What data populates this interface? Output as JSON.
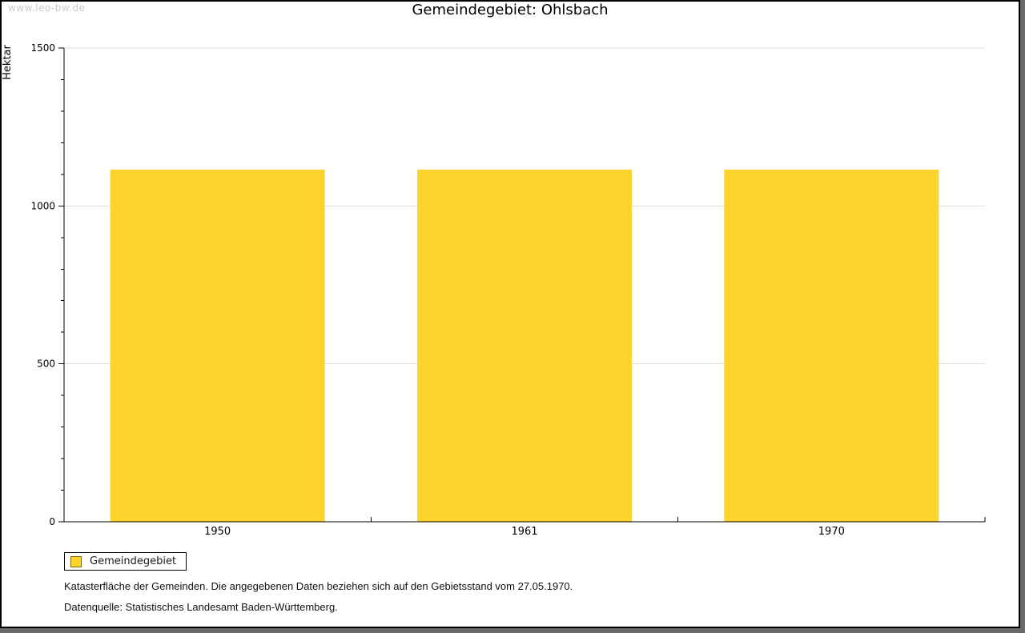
{
  "watermark": "www.leo-bw.de",
  "title": "Gemeindegebiet: Ohlsbach",
  "chart_data": {
    "type": "bar",
    "title": "Gemeindegebiet: Ohlsbach",
    "categories": [
      "1950",
      "1961",
      "1970"
    ],
    "series": [
      {
        "name": "Gemeindegebiet",
        "values": [
          1115,
          1115,
          1115
        ]
      }
    ],
    "xlabel": "",
    "ylabel": "Hektar",
    "ylim": [
      0,
      1500
    ],
    "y_major_step": 500,
    "y_minor_step": 100,
    "y_tick_labels": [
      "0",
      "500",
      "1000",
      "1500"
    ],
    "grid": true,
    "legend_position": "bottom-left",
    "bar_color": "#FCD42D"
  },
  "legend": {
    "label": "Gemeindegebiet",
    "swatch_color": "#FCD42D"
  },
  "footnotes": [
    "Katasterfläche der Gemeinden. Die angegebenen Daten beziehen sich auf den Gebietsstand vom 27.05.1970.",
    "Datenquelle: Statistisches Landesamt Baden-Württemberg."
  ],
  "colors": {
    "bar": "#FCD42D",
    "grid": "#DDDDDD",
    "axis": "#000000",
    "watermark": "#C9C9C9",
    "frame_shadow": "#6A6A6A",
    "legend_swatch_border": "#806600"
  }
}
